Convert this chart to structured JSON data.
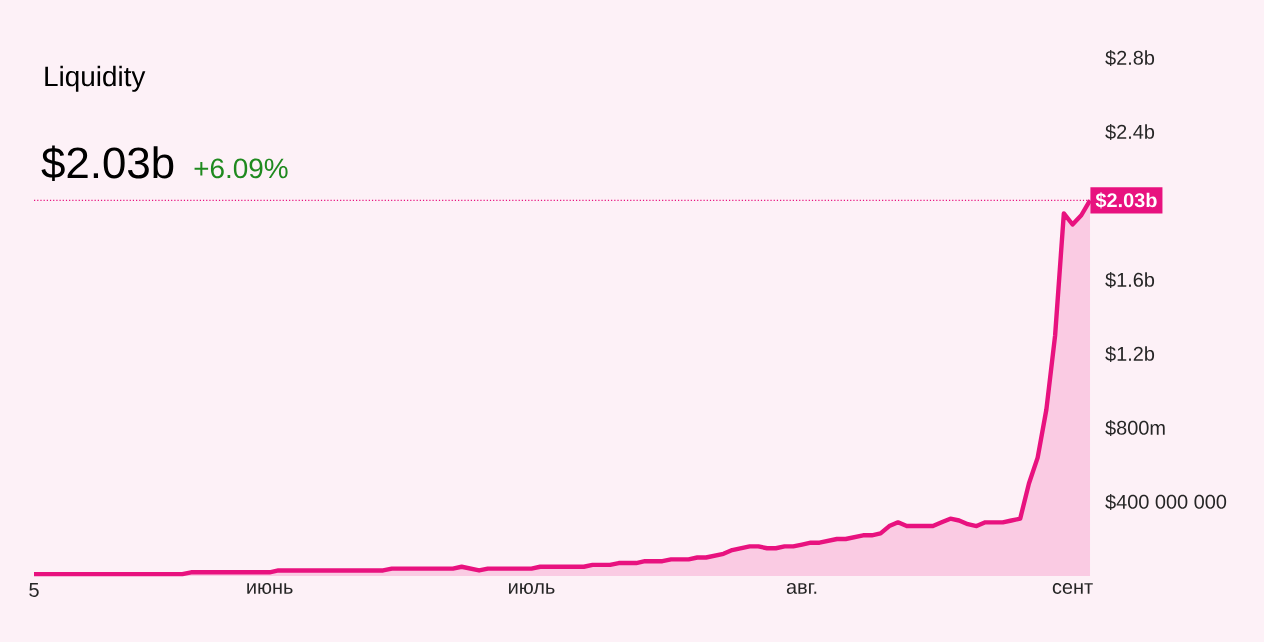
{
  "chart_data": {
    "type": "area",
    "title": "Liquidity",
    "subtitle": "$2.03b",
    "annotations": [
      "+6.09%"
    ],
    "categories": [
      "5",
      null,
      null,
      null,
      null,
      null,
      null,
      null,
      null,
      null,
      null,
      null,
      null,
      null,
      null,
      null,
      null,
      null,
      null,
      null,
      null,
      null,
      null,
      null,
      null,
      null,
      null,
      "июнь",
      null,
      null,
      null,
      null,
      null,
      null,
      null,
      null,
      null,
      null,
      null,
      null,
      null,
      null,
      null,
      null,
      null,
      null,
      null,
      null,
      null,
      null,
      null,
      null,
      null,
      null,
      null,
      null,
      null,
      "июль",
      null,
      null,
      null,
      null,
      null,
      null,
      null,
      null,
      null,
      null,
      null,
      null,
      null,
      null,
      null,
      null,
      null,
      null,
      null,
      null,
      null,
      null,
      null,
      null,
      null,
      null,
      null,
      null,
      null,
      null,
      "авг.",
      null,
      null,
      null,
      null,
      null,
      null,
      null,
      null,
      null,
      null,
      null,
      null,
      null,
      null,
      null,
      null,
      null,
      null,
      null,
      null,
      null,
      null,
      null,
      null,
      null,
      null,
      null,
      null,
      null,
      null,
      "сент",
      null,
      null
    ],
    "values": [
      10000000,
      10000000,
      10000000,
      10000000,
      10000000,
      10000000,
      10000000,
      10000000,
      10000000,
      10000000,
      10000000,
      10000000,
      10000000,
      10000000,
      10000000,
      10000000,
      10000000,
      10000000,
      20000000,
      20000000,
      20000000,
      20000000,
      20000000,
      20000000,
      20000000,
      20000000,
      20000000,
      20000000,
      30000000,
      30000000,
      30000000,
      30000000,
      30000000,
      30000000,
      30000000,
      30000000,
      30000000,
      30000000,
      30000000,
      30000000,
      30000000,
      40000000,
      40000000,
      40000000,
      40000000,
      40000000,
      40000000,
      40000000,
      40000000,
      50000000,
      40000000,
      30000000,
      40000000,
      40000000,
      40000000,
      40000000,
      40000000,
      40000000,
      50000000,
      50000000,
      50000000,
      50000000,
      50000000,
      50000000,
      60000000,
      60000000,
      60000000,
      70000000,
      70000000,
      70000000,
      80000000,
      80000000,
      80000000,
      90000000,
      90000000,
      90000000,
      100000000,
      100000000,
      110000000,
      120000000,
      140000000,
      150000000,
      160000000,
      160000000,
      150000000,
      150000000,
      160000000,
      160000000,
      170000000,
      180000000,
      180000000,
      190000000,
      200000000,
      200000000,
      210000000,
      220000000,
      220000000,
      230000000,
      270000000,
      290000000,
      270000000,
      270000000,
      270000000,
      270000000,
      290000000,
      310000000,
      300000000,
      280000000,
      270000000,
      290000000,
      290000000,
      290000000,
      300000000,
      310000000,
      500000000,
      640000000,
      900000000,
      1300000000,
      1960000000,
      1900000000,
      1950000000,
      2030000000
    ],
    "color": "#e8127f",
    "ylim": [
      0,
      2800000000
    ],
    "yticks": [
      {
        "value": 400000000,
        "label": "$400 000 000"
      },
      {
        "value": 800000000,
        "label": "$800m"
      },
      {
        "value": 1200000000,
        "label": "$1.2b"
      },
      {
        "value": 1600000000,
        "label": "$1.6b"
      },
      {
        "value": 2400000000,
        "label": "$2.4b"
      },
      {
        "value": 2800000000,
        "label": "$2.8b"
      }
    ],
    "ref_lines": [
      {
        "axis": "y",
        "value": 2030000000,
        "label": "$2.03b",
        "color": "#e8127f",
        "line_style": "dotted"
      }
    ],
    "marker": "none",
    "line_style": "solid"
  }
}
